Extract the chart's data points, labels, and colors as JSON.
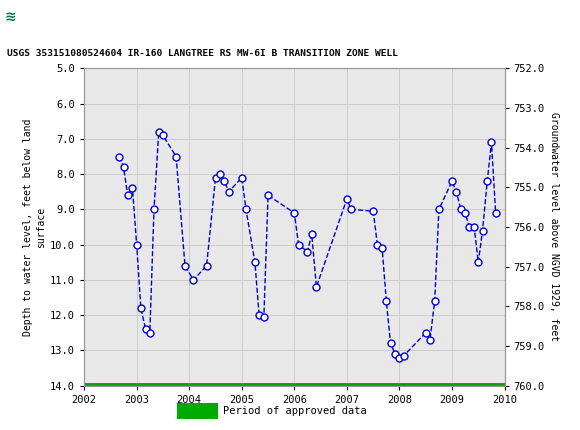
{
  "title_bar_color": "#007a3d",
  "chart_title": "USGS 353151080524604 IR-160 LANGTREE RS MW-6I B TRANSITION ZONE WELL",
  "ylabel_left": "Depth to water level, feet below land\nsurface",
  "ylabel_right": "Groundwater level above NGVD 1929, feet",
  "ylim_left": [
    5.0,
    14.0
  ],
  "ylim_right": [
    752.0,
    761.0
  ],
  "yticks_left": [
    5.0,
    6.0,
    7.0,
    8.0,
    9.0,
    10.0,
    11.0,
    12.0,
    13.0,
    14.0
  ],
  "yticks_right": [
    752.0,
    753.0,
    754.0,
    755.0,
    756.0,
    757.0,
    758.0,
    759.0,
    760.0
  ],
  "xlim": [
    2002.0,
    2010.0
  ],
  "xticks": [
    2002,
    2003,
    2004,
    2005,
    2006,
    2007,
    2008,
    2009,
    2010
  ],
  "line_color": "#0000cc",
  "marker_facecolor": "white",
  "marker_size": 5,
  "line_width": 1.0,
  "grid_color": "#cccccc",
  "plot_bg_color": "#e8e8e8",
  "approved_bar_color": "#00aa00",
  "legend_label": "Period of approved data",
  "data_x": [
    2002.67,
    2002.75,
    2002.83,
    2002.92,
    2003.0,
    2003.08,
    2003.17,
    2003.25,
    2003.33,
    2003.42,
    2003.5,
    2003.75,
    2003.92,
    2004.08,
    2004.33,
    2004.5,
    2004.58,
    2004.67,
    2004.75,
    2005.0,
    2005.08,
    2005.25,
    2005.33,
    2005.42,
    2005.5,
    2006.0,
    2006.08,
    2006.25,
    2006.33,
    2006.42,
    2007.0,
    2007.08,
    2007.5,
    2007.58,
    2007.67,
    2007.75,
    2007.83,
    2007.92,
    2008.0,
    2008.08,
    2008.5,
    2008.58,
    2008.67,
    2008.75,
    2009.0,
    2009.08,
    2009.17,
    2009.25,
    2009.33,
    2009.42,
    2009.5,
    2009.58,
    2009.67,
    2009.75,
    2009.83
  ],
  "data_y": [
    7.5,
    7.8,
    8.6,
    8.4,
    10.0,
    11.8,
    12.4,
    12.5,
    9.0,
    6.8,
    6.9,
    7.5,
    10.6,
    11.0,
    10.6,
    8.1,
    8.0,
    8.2,
    8.5,
    8.1,
    9.0,
    10.5,
    12.0,
    12.05,
    8.6,
    9.1,
    10.0,
    10.2,
    9.7,
    11.2,
    8.7,
    9.0,
    9.05,
    10.0,
    10.1,
    11.6,
    12.8,
    13.1,
    13.2,
    13.15,
    12.5,
    12.7,
    11.6,
    9.0,
    8.2,
    8.5,
    9.0,
    9.1,
    9.5,
    9.5,
    10.5,
    9.6,
    8.2,
    7.1,
    9.1
  ]
}
